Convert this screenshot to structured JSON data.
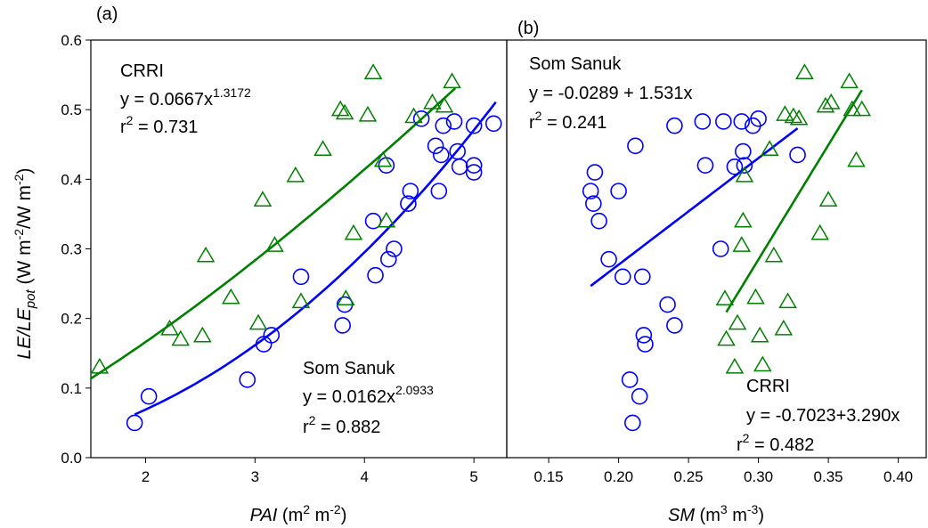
{
  "colors": {
    "som_sanuk": "#0000ff",
    "crri": "#008000",
    "axis": "#000000"
  },
  "shared_y_axis": {
    "label_main": "LE/LE",
    "label_sub": "pot",
    "label_units_a": " (W m",
    "label_units_sup1": "-2",
    "label_units_b": "/W m",
    "label_units_sup2": "-2",
    "label_units_c": ")",
    "ylim": [
      0.0,
      0.6
    ],
    "ticks": [
      "0.0",
      "0.1",
      "0.2",
      "0.3",
      "0.4",
      "0.5",
      "0.6"
    ]
  },
  "chart_data": [
    {
      "type": "scatter",
      "panel_label": "(a)",
      "xlabel_main": "PAI",
      "xlabel_units_a": " (m",
      "xlabel_sup1": "2",
      "xlabel_units_b": " m",
      "xlabel_sup2": "-2",
      "xlabel_units_c": ")",
      "xlim": [
        1.5,
        5.3
      ],
      "xticks": [
        2,
        3,
        4,
        5
      ],
      "xtick_labels": [
        "2",
        "3",
        "4",
        "5"
      ],
      "grid": false,
      "annotations": {
        "crri": {
          "name": "CRRI",
          "eq_base": "y = 0.0667x",
          "eq_exp": "1.3172",
          "r2_pre": "r",
          "r2_sup": "2",
          "r2_val": " = 0.731"
        },
        "som": {
          "name": "Som Sanuk",
          "eq_base": "y = 0.0162x",
          "eq_exp": "2.0933",
          "r2_pre": "r",
          "r2_sup": "2",
          "r2_val": " = 0.882"
        }
      },
      "series": [
        {
          "name": "Som Sanuk",
          "marker": "circle",
          "color": "#0000ff",
          "points": [
            [
              1.9,
              0.05
            ],
            [
              2.03,
              0.088
            ],
            [
              2.93,
              0.112
            ],
            [
              3.08,
              0.163
            ],
            [
              3.15,
              0.176
            ],
            [
              3.42,
              0.26
            ],
            [
              3.8,
              0.19
            ],
            [
              3.82,
              0.22
            ],
            [
              4.08,
              0.34
            ],
            [
              4.1,
              0.262
            ],
            [
              4.2,
              0.42
            ],
            [
              4.22,
              0.285
            ],
            [
              4.27,
              0.3
            ],
            [
              4.4,
              0.365
            ],
            [
              4.42,
              0.383
            ],
            [
              4.52,
              0.487
            ],
            [
              4.65,
              0.448
            ],
            [
              4.68,
              0.383
            ],
            [
              4.7,
              0.435
            ],
            [
              4.72,
              0.477
            ],
            [
              4.82,
              0.483
            ],
            [
              4.85,
              0.44
            ],
            [
              4.87,
              0.418
            ],
            [
              5.0,
              0.41
            ],
            [
              5.0,
              0.42
            ],
            [
              5.0,
              0.477
            ],
            [
              5.18,
              0.48
            ]
          ],
          "fit": {
            "type": "power",
            "a": 0.0162,
            "b": 2.0933,
            "x_range": [
              1.9,
              5.2
            ]
          }
        },
        {
          "name": "CRRI",
          "marker": "triangle",
          "color": "#008000",
          "points": [
            [
              1.58,
              0.13
            ],
            [
              2.22,
              0.185
            ],
            [
              2.32,
              0.17
            ],
            [
              2.52,
              0.175
            ],
            [
              2.55,
              0.29
            ],
            [
              2.78,
              0.23
            ],
            [
              3.03,
              0.193
            ],
            [
              3.07,
              0.37
            ],
            [
              3.18,
              0.305
            ],
            [
              3.37,
              0.405
            ],
            [
              3.42,
              0.224
            ],
            [
              3.62,
              0.443
            ],
            [
              3.78,
              0.5
            ],
            [
              3.82,
              0.495
            ],
            [
              3.83,
              0.228
            ],
            [
              3.9,
              0.322
            ],
            [
              4.03,
              0.492
            ],
            [
              4.08,
              0.553
            ],
            [
              4.17,
              0.427
            ],
            [
              4.2,
              0.34
            ],
            [
              4.45,
              0.49
            ],
            [
              4.62,
              0.51
            ],
            [
              4.73,
              0.505
            ],
            [
              4.8,
              0.54
            ]
          ],
          "fit": {
            "type": "power",
            "a": 0.0667,
            "b": 1.3172,
            "x_range": [
              1.5,
              4.83
            ]
          }
        }
      ]
    },
    {
      "type": "scatter",
      "panel_label": "(b)",
      "xlabel_main": "SM",
      "xlabel_units_a": " (m",
      "xlabel_sup1": "3",
      "xlabel_units_b": " m",
      "xlabel_sup2": "-3",
      "xlabel_units_c": ")",
      "xlim": [
        0.12,
        0.42
      ],
      "xticks": [
        0.15,
        0.2,
        0.25,
        0.3,
        0.35,
        0.4
      ],
      "xtick_labels": [
        "0.15",
        "0.20",
        "0.25",
        "0.30",
        "0.35",
        "0.40"
      ],
      "grid": false,
      "annotations": {
        "som": {
          "name": "Som Sanuk",
          "eq_base": "y = -0.0289 + 1.531x",
          "r2_pre": "r",
          "r2_sup": "2",
          "r2_val": " = 0.241"
        },
        "crri": {
          "name": "CRRI",
          "eq_base": "y = -0.7023+3.290x",
          "r2_pre": "r",
          "r2_sup": "2",
          "r2_val": " = 0.482"
        }
      },
      "series": [
        {
          "name": "Som Sanuk",
          "marker": "circle",
          "color": "#0000ff",
          "points": [
            [
              0.18,
              0.383
            ],
            [
              0.182,
              0.365
            ],
            [
              0.183,
              0.41
            ],
            [
              0.186,
              0.34
            ],
            [
              0.193,
              0.285
            ],
            [
              0.2,
              0.383
            ],
            [
              0.203,
              0.26
            ],
            [
              0.208,
              0.112
            ],
            [
              0.21,
              0.05
            ],
            [
              0.212,
              0.448
            ],
            [
              0.215,
              0.088
            ],
            [
              0.217,
              0.26
            ],
            [
              0.218,
              0.176
            ],
            [
              0.219,
              0.163
            ],
            [
              0.235,
              0.22
            ],
            [
              0.24,
              0.19
            ],
            [
              0.24,
              0.477
            ],
            [
              0.26,
              0.483
            ],
            [
              0.262,
              0.42
            ],
            [
              0.273,
              0.3
            ],
            [
              0.275,
              0.483
            ],
            [
              0.283,
              0.418
            ],
            [
              0.288,
              0.483
            ],
            [
              0.289,
              0.44
            ],
            [
              0.29,
              0.42
            ],
            [
              0.296,
              0.477
            ],
            [
              0.3,
              0.487
            ],
            [
              0.328,
              0.435
            ]
          ],
          "fit": {
            "type": "linear",
            "a": -0.0289,
            "b": 1.531,
            "x_range": [
              0.18,
              0.328
            ]
          }
        },
        {
          "name": "CRRI",
          "marker": "triangle",
          "color": "#008000",
          "points": [
            [
              0.276,
              0.228
            ],
            [
              0.277,
              0.17
            ],
            [
              0.283,
              0.13
            ],
            [
              0.285,
              0.193
            ],
            [
              0.288,
              0.305
            ],
            [
              0.289,
              0.34
            ],
            [
              0.29,
              0.405
            ],
            [
              0.298,
              0.23
            ],
            [
              0.301,
              0.175
            ],
            [
              0.303,
              0.133
            ],
            [
              0.308,
              0.443
            ],
            [
              0.311,
              0.29
            ],
            [
              0.318,
              0.185
            ],
            [
              0.319,
              0.493
            ],
            [
              0.321,
              0.224
            ],
            [
              0.325,
              0.49
            ],
            [
              0.329,
              0.487
            ],
            [
              0.333,
              0.553
            ],
            [
              0.344,
              0.322
            ],
            [
              0.348,
              0.505
            ],
            [
              0.35,
              0.37
            ],
            [
              0.352,
              0.51
            ],
            [
              0.365,
              0.54
            ],
            [
              0.367,
              0.5
            ],
            [
              0.37,
              0.427
            ],
            [
              0.374,
              0.5
            ]
          ],
          "fit": {
            "type": "linear",
            "a": -0.7023,
            "b": 3.29,
            "x_range": [
              0.277,
              0.374
            ]
          }
        }
      ]
    }
  ]
}
